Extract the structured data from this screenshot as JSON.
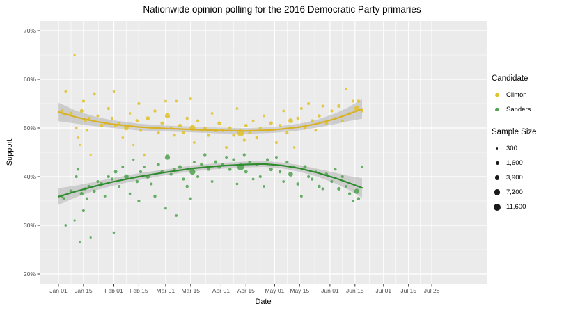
{
  "chart_data": {
    "type": "scatter",
    "title": "Nationwide opinion polling for the 2016 Democratic Party primaries",
    "xlabel": "Date",
    "ylabel": "Support",
    "panel_bg": "#EBEBEB",
    "grid_color": "#FFFFFF",
    "ribbon_color": "#9B9B9B",
    "tick_label_color": "#4D4D4D",
    "tick_mark_color": "#333333",
    "ylim": [
      18,
      72
    ],
    "y_ticks": [
      {
        "label": "20%",
        "value": 20
      },
      {
        "label": "30%",
        "value": 30
      },
      {
        "label": "40%",
        "value": 40
      },
      {
        "label": "50%",
        "value": 50
      },
      {
        "label": "60%",
        "value": 60
      },
      {
        "label": "70%",
        "value": 70
      }
    ],
    "y_minor": [
      25,
      35,
      45,
      55,
      65
    ],
    "x_ticks": [
      {
        "label": "Jan 01",
        "day": 0
      },
      {
        "label": "Jan 15",
        "day": 14
      },
      {
        "label": "Feb 01",
        "day": 31
      },
      {
        "label": "Feb 15",
        "day": 45
      },
      {
        "label": "Mar 01",
        "day": 60
      },
      {
        "label": "Mar 15",
        "day": 74
      },
      {
        "label": "Apr 01",
        "day": 91
      },
      {
        "label": "Apr 15",
        "day": 105
      },
      {
        "label": "May 01",
        "day": 121
      },
      {
        "label": "May 15",
        "day": 135
      },
      {
        "label": "Jun 01",
        "day": 152
      },
      {
        "label": "Jun 15",
        "day": 166
      },
      {
        "label": "Jul 01",
        "day": 182
      },
      {
        "label": "Jul 15",
        "day": 196
      },
      {
        "label": "Jul 28",
        "day": 209
      }
    ],
    "candidate_legend_title": "Candidate",
    "series": [
      {
        "name": "Clinton",
        "color": "#E0C22C",
        "line_color": "#D9B125"
      },
      {
        "name": "Sanders",
        "color": "#52A352",
        "line_color": "#2E8B2E"
      }
    ],
    "size_legend": {
      "title": "Sample Size",
      "entries": [
        {
          "label": "300",
          "n": 300
        },
        {
          "label": "1,600",
          "n": 1600
        },
        {
          "label": "3,900",
          "n": 3900
        },
        {
          "label": "7,200",
          "n": 7200
        },
        {
          "label": "11,600",
          "n": 11600
        }
      ]
    },
    "polls": [
      {
        "d": 2,
        "c": 53.5,
        "s": 36,
        "n": 1200
      },
      {
        "d": 3,
        "c": 52.8,
        "s": 35.5,
        "n": 900
      },
      {
        "d": 4,
        "c": 57.5,
        "s": 30,
        "n": 600
      },
      {
        "d": 7,
        "c": 53,
        "s": 37,
        "n": 1500
      },
      {
        "d": 9,
        "c": 65,
        "s": 31,
        "n": 450
      },
      {
        "d": 10,
        "c": 50,
        "s": 40,
        "n": 800
      },
      {
        "d": 11,
        "c": 48,
        "s": 41.5,
        "n": 700
      },
      {
        "d": 12,
        "c": 46.5,
        "s": 26.5,
        "n": 350
      },
      {
        "d": 13,
        "c": 53.5,
        "s": 36.5,
        "n": 2000
      },
      {
        "d": 14,
        "c": 55.5,
        "s": 33,
        "n": 1000
      },
      {
        "d": 15,
        "c": 51.5,
        "s": 37.5,
        "n": 1100
      },
      {
        "d": 16,
        "c": 49.5,
        "s": 35.5,
        "n": 600
      },
      {
        "d": 17,
        "c": 52,
        "s": 38,
        "n": 900
      },
      {
        "d": 18,
        "c": 44.5,
        "s": 27.5,
        "n": 400
      },
      {
        "d": 20,
        "c": 57,
        "s": 37,
        "n": 1300
      },
      {
        "d": 22,
        "c": 52.5,
        "s": 39,
        "n": 800
      },
      {
        "d": 24,
        "c": 50.5,
        "s": 38.5,
        "n": 1800
      },
      {
        "d": 26,
        "c": 51,
        "s": 36,
        "n": 700
      },
      {
        "d": 28,
        "c": 54,
        "s": 40,
        "n": 1000
      },
      {
        "d": 30,
        "c": 52,
        "s": 39.5,
        "n": 900
      },
      {
        "d": 31,
        "c": 57.5,
        "s": 28.5,
        "n": 500
      },
      {
        "d": 32,
        "c": 50.5,
        "s": 41,
        "n": 1600
      },
      {
        "d": 34,
        "c": 51,
        "s": 38,
        "n": 800
      },
      {
        "d": 36,
        "c": 48,
        "s": 42,
        "n": 700
      },
      {
        "d": 38,
        "c": 50,
        "s": 40,
        "n": 3900
      },
      {
        "d": 40,
        "c": 53,
        "s": 36.5,
        "n": 600
      },
      {
        "d": 42,
        "c": 46.5,
        "s": 43.5,
        "n": 450
      },
      {
        "d": 44,
        "c": 51.5,
        "s": 39,
        "n": 1200
      },
      {
        "d": 45,
        "c": 55,
        "s": 35,
        "n": 900
      },
      {
        "d": 46,
        "c": 49.5,
        "s": 41,
        "n": 1000
      },
      {
        "d": 48,
        "c": 44.5,
        "s": 42,
        "n": 550
      },
      {
        "d": 50,
        "c": 52,
        "s": 40,
        "n": 2500
      },
      {
        "d": 52,
        "c": 50,
        "s": 38.5,
        "n": 800
      },
      {
        "d": 54,
        "c": 53.5,
        "s": 36,
        "n": 1100
      },
      {
        "d": 56,
        "c": 49,
        "s": 42.5,
        "n": 950
      },
      {
        "d": 58,
        "c": 51,
        "s": 41,
        "n": 1400
      },
      {
        "d": 60,
        "c": 55.5,
        "s": 33.5,
        "n": 700
      },
      {
        "d": 61,
        "c": 52.5,
        "s": 44,
        "n": 5000
      },
      {
        "d": 63,
        "c": 50,
        "s": 40.5,
        "n": 1000
      },
      {
        "d": 65,
        "c": 48.5,
        "s": 41.5,
        "n": 800
      },
      {
        "d": 66,
        "c": 55.5,
        "s": 32,
        "n": 600
      },
      {
        "d": 68,
        "c": 50.5,
        "s": 42,
        "n": 1800
      },
      {
        "d": 70,
        "c": 49,
        "s": 39.5,
        "n": 900
      },
      {
        "d": 72,
        "c": 52,
        "s": 38,
        "n": 1100
      },
      {
        "d": 74,
        "c": 56,
        "s": 35.5,
        "n": 750
      },
      {
        "d": 75,
        "c": 50,
        "s": 41,
        "n": 7200
      },
      {
        "d": 76,
        "c": 47,
        "s": 43,
        "n": 650
      },
      {
        "d": 78,
        "c": 51.5,
        "s": 40,
        "n": 1000
      },
      {
        "d": 80,
        "c": 49.5,
        "s": 42.5,
        "n": 850
      },
      {
        "d": 82,
        "c": 50,
        "s": 44.5,
        "n": 1200
      },
      {
        "d": 84,
        "c": 48.5,
        "s": 41.5,
        "n": 950
      },
      {
        "d": 86,
        "c": 53,
        "s": 39,
        "n": 700
      },
      {
        "d": 88,
        "c": 49.5,
        "s": 43,
        "n": 1600
      },
      {
        "d": 90,
        "c": 51,
        "s": 42,
        "n": 2000
      },
      {
        "d": 92,
        "c": 49.5,
        "s": 42.5,
        "n": 1100
      },
      {
        "d": 94,
        "c": 46,
        "s": 44,
        "n": 800
      },
      {
        "d": 96,
        "c": 50,
        "s": 41.5,
        "n": 1300
      },
      {
        "d": 98,
        "c": 48.5,
        "s": 43.5,
        "n": 900
      },
      {
        "d": 100,
        "c": 54,
        "s": 38.5,
        "n": 600
      },
      {
        "d": 102,
        "c": 49,
        "s": 42,
        "n": 11600
      },
      {
        "d": 104,
        "c": 47.5,
        "s": 44.5,
        "n": 1000
      },
      {
        "d": 105,
        "c": 50.5,
        "s": 41,
        "n": 1500
      },
      {
        "d": 107,
        "c": 49,
        "s": 43,
        "n": 800
      },
      {
        "d": 109,
        "c": 51.5,
        "s": 39.5,
        "n": 700
      },
      {
        "d": 111,
        "c": 48,
        "s": 42.5,
        "n": 1200
      },
      {
        "d": 113,
        "c": 50,
        "s": 40,
        "n": 900
      },
      {
        "d": 115,
        "c": 52.5,
        "s": 38,
        "n": 650
      },
      {
        "d": 117,
        "c": 49.5,
        "s": 43.5,
        "n": 1000
      },
      {
        "d": 119,
        "c": 51,
        "s": 41.5,
        "n": 1900
      },
      {
        "d": 122,
        "c": 47,
        "s": 44,
        "n": 850
      },
      {
        "d": 124,
        "c": 50.5,
        "s": 41,
        "n": 1100
      },
      {
        "d": 126,
        "c": 53.5,
        "s": 39,
        "n": 700
      },
      {
        "d": 128,
        "c": 49,
        "s": 43,
        "n": 1000
      },
      {
        "d": 130,
        "c": 51.5,
        "s": 40.5,
        "n": 3900
      },
      {
        "d": 132,
        "c": 46,
        "s": 42,
        "n": 500
      },
      {
        "d": 134,
        "c": 52,
        "s": 38.5,
        "n": 1200
      },
      {
        "d": 136,
        "c": 54,
        "s": 36,
        "n": 800
      },
      {
        "d": 138,
        "c": 50,
        "s": 42,
        "n": 1500
      },
      {
        "d": 140,
        "c": 55,
        "s": 40,
        "n": 900
      },
      {
        "d": 142,
        "c": 51.5,
        "s": 39.5,
        "n": 1000
      },
      {
        "d": 144,
        "c": 49.5,
        "s": 41,
        "n": 700
      },
      {
        "d": 146,
        "c": 52.5,
        "s": 38,
        "n": 1100
      },
      {
        "d": 148,
        "c": 54.5,
        "s": 37.5,
        "n": 850
      },
      {
        "d": 150,
        "c": 51,
        "s": 40.5,
        "n": 1300
      },
      {
        "d": 153,
        "c": 53.5,
        "s": 39,
        "n": 950
      },
      {
        "d": 155,
        "c": 52,
        "s": 41.5,
        "n": 700
      },
      {
        "d": 157,
        "c": 54.5,
        "s": 37.5,
        "n": 1600
      },
      {
        "d": 159,
        "c": 51.5,
        "s": 40,
        "n": 800
      },
      {
        "d": 161,
        "c": 58,
        "s": 38,
        "n": 600
      },
      {
        "d": 163,
        "c": 53,
        "s": 36.5,
        "n": 1000
      },
      {
        "d": 165,
        "c": 55.5,
        "s": 35,
        "n": 750
      },
      {
        "d": 167,
        "c": 54,
        "s": 37,
        "n": 5500
      },
      {
        "d": 168,
        "c": 55.5,
        "s": 35.5,
        "n": 1200
      },
      {
        "d": 170,
        "c": 53.5,
        "s": 42,
        "n": 900
      }
    ],
    "trend": {
      "clinton": [
        [
          0,
          53.3,
          51.4,
          55.2
        ],
        [
          10,
          52.2,
          50.9,
          53.5
        ],
        [
          20,
          51.4,
          50.4,
          52.4
        ],
        [
          30,
          50.8,
          50.0,
          51.6
        ],
        [
          45,
          50.2,
          49.5,
          50.9
        ],
        [
          60,
          49.9,
          49.3,
          50.5
        ],
        [
          75,
          49.7,
          49.1,
          50.3
        ],
        [
          90,
          49.5,
          48.9,
          50.1
        ],
        [
          105,
          49.4,
          48.8,
          50.0
        ],
        [
          120,
          49.6,
          49.0,
          50.2
        ],
        [
          135,
          50.2,
          49.5,
          50.9
        ],
        [
          145,
          50.9,
          50.1,
          51.7
        ],
        [
          155,
          51.9,
          50.8,
          53.0
        ],
        [
          162,
          52.8,
          51.4,
          54.2
        ],
        [
          170,
          53.9,
          51.9,
          55.9
        ]
      ],
      "sanders": [
        [
          0,
          35.9,
          34.2,
          37.6
        ],
        [
          10,
          37.0,
          35.8,
          38.2
        ],
        [
          20,
          38.0,
          37.1,
          38.9
        ],
        [
          30,
          38.9,
          38.1,
          39.7
        ],
        [
          45,
          40.0,
          39.3,
          40.7
        ],
        [
          60,
          40.9,
          40.3,
          41.5
        ],
        [
          75,
          41.7,
          41.1,
          42.3
        ],
        [
          90,
          42.2,
          41.6,
          42.8
        ],
        [
          105,
          42.5,
          41.9,
          43.1
        ],
        [
          115,
          42.6,
          42.0,
          43.2
        ],
        [
          125,
          42.3,
          41.7,
          42.9
        ],
        [
          135,
          41.7,
          41.0,
          42.4
        ],
        [
          145,
          40.8,
          40.0,
          41.6
        ],
        [
          155,
          39.7,
          38.6,
          40.8
        ],
        [
          162,
          38.8,
          37.4,
          40.2
        ],
        [
          170,
          37.7,
          35.7,
          39.7
        ]
      ]
    }
  }
}
